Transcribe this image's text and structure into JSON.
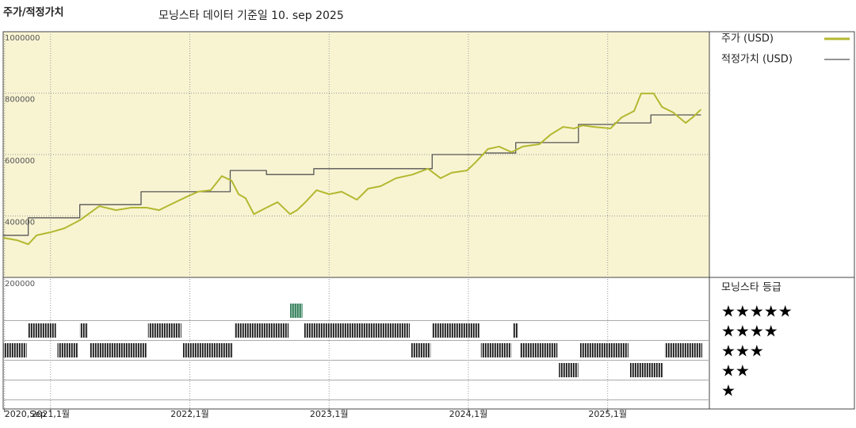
{
  "chart_data": {
    "type": "line",
    "title": "주가/적정가치",
    "subtitle": "모닝스타 데이터 기준일 10. sep 2025",
    "xlim": [
      2020.66,
      2025.73
    ],
    "xticks": [
      {
        "value": 2020.67,
        "label": "2020,Sep"
      },
      {
        "value": 2021,
        "label": "2021,1월"
      },
      {
        "value": 2022,
        "label": "2022,1월"
      },
      {
        "value": 2023,
        "label": "2023,1월"
      },
      {
        "value": 2024,
        "label": "2024,1월"
      },
      {
        "value": 2025,
        "label": "2025,1월"
      }
    ],
    "ylim": [
      200000,
      1000000
    ],
    "yticks": [
      200000,
      400000,
      600000,
      800000,
      1000000
    ],
    "grid": true,
    "series": [
      {
        "name": "주가 (USD)",
        "color": "#b3b830",
        "x": [
          2020.66,
          2020.76,
          2020.84,
          2020.9,
          2021.0,
          2021.1,
          2021.21,
          2021.35,
          2021.47,
          2021.58,
          2021.69,
          2021.78,
          2021.86,
          2021.98,
          2022.06,
          2022.15,
          2022.23,
          2022.3,
          2022.35,
          2022.4,
          2022.46,
          2022.55,
          2022.63,
          2022.72,
          2022.77,
          2022.83,
          2022.91,
          2023.0,
          2023.09,
          2023.2,
          2023.28,
          2023.37,
          2023.48,
          2023.6,
          2023.71,
          2023.8,
          2023.88,
          2023.99,
          2024.05,
          2024.14,
          2024.22,
          2024.31,
          2024.39,
          2024.51,
          2024.59,
          2024.68,
          2024.76,
          2024.82,
          2024.9,
          2025.02,
          2025.1,
          2025.19,
          2025.24,
          2025.33,
          2025.39,
          2025.47,
          2025.56,
          2025.61,
          2025.67
        ],
        "values": [
          329000,
          321000,
          308000,
          337000,
          347000,
          360000,
          386000,
          432000,
          419000,
          427000,
          427000,
          419000,
          437000,
          463000,
          479000,
          484000,
          530000,
          515000,
          471000,
          458000,
          406000,
          427000,
          445000,
          406000,
          419000,
          445000,
          484000,
          471000,
          479000,
          453000,
          489000,
          497000,
          523000,
          535000,
          554000,
          523000,
          541000,
          548000,
          574000,
          618000,
          626000,
          608000,
          626000,
          634000,
          665000,
          690000,
          685000,
          695000,
          690000,
          685000,
          721000,
          742000,
          799000,
          799000,
          755000,
          737000,
          703000,
          721000,
          747000
        ]
      },
      {
        "name": "적정가치 (USD)",
        "color": "#555555",
        "step": "post",
        "x": [
          2020.66,
          2020.84,
          2021.21,
          2021.65,
          2022.29,
          2022.55,
          2022.89,
          2023.74,
          2024.11,
          2024.34,
          2024.79,
          2025.05,
          2025.31,
          2025.67
        ],
        "values": [
          337000,
          394000,
          437000,
          479000,
          548000,
          535000,
          554000,
          600000,
          605000,
          639000,
          698000,
          703000,
          729000,
          729000
        ]
      }
    ],
    "rating": {
      "title": "모닝스타 등급",
      "levels": [
        5,
        4,
        3,
        2,
        1
      ],
      "labels": [
        "★★★★★",
        "★★★★",
        "★★★",
        "★★",
        "★"
      ],
      "color": "#111111",
      "top_color": "#2f7a58",
      "bounds": [
        2020.66,
        2020.84,
        2021.05,
        2021.21,
        2021.28,
        2021.7,
        2021.95,
        2022.32,
        2022.72,
        2022.82,
        2023.59,
        2023.74,
        2024.09,
        2024.32,
        2024.37,
        2024.65,
        2024.8,
        2025.16,
        2025.41,
        2025.69
      ],
      "stars": [
        3,
        4,
        3,
        4,
        3,
        4,
        3,
        4,
        5,
        4,
        3,
        4,
        3,
        4,
        3,
        2,
        3,
        2,
        3
      ]
    }
  }
}
